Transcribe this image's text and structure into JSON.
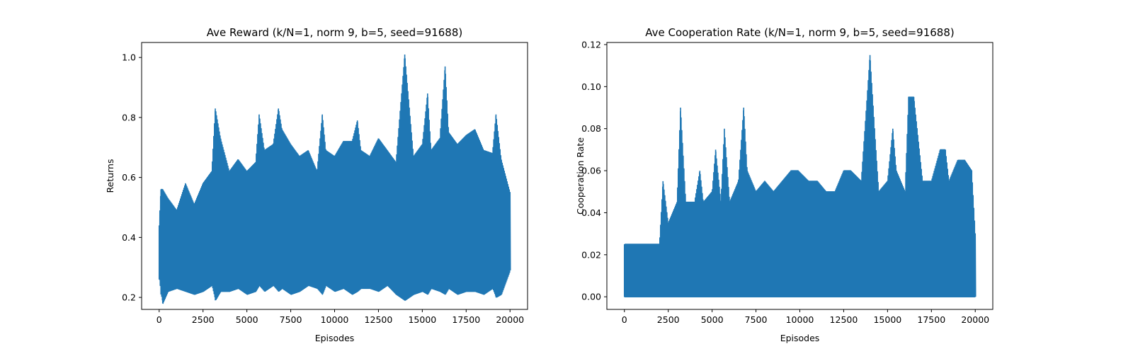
{
  "chart_data": [
    {
      "type": "line",
      "title": "Ave Reward (k/N=1, norm 9, b=5, seed=91688)",
      "xlabel": "Episodes",
      "ylabel": "Returns",
      "xlim": [
        -1000,
        21000
      ],
      "ylim": [
        0.16,
        1.05
      ],
      "xticks": [
        0,
        2500,
        5000,
        7500,
        10000,
        12500,
        15000,
        17500,
        20000
      ],
      "yticks": [
        0.2,
        0.4,
        0.6,
        0.8,
        1.0
      ],
      "xtick_labels": [
        "0",
        "2500",
        "5000",
        "7500",
        "10000",
        "12500",
        "15000",
        "17500",
        "20000"
      ],
      "ytick_labels": [
        "0.2",
        "0.4",
        "0.6",
        "0.8",
        "1.0"
      ],
      "grid": false,
      "color": "#1f77b4",
      "series": [
        {
          "x": [
            0,
            100,
            200,
            500,
            1000,
            1500,
            2000,
            2500,
            3000,
            3200,
            3500,
            4000,
            4500,
            5000,
            5500,
            5700,
            6000,
            6500,
            6800,
            7000,
            7500,
            8000,
            8500,
            9000,
            9300,
            9500,
            10000,
            10500,
            11000,
            11300,
            11500,
            12000,
            12500,
            13000,
            13500,
            14000,
            14500,
            15000,
            15300,
            15500,
            16000,
            16300,
            16500,
            17000,
            17500,
            18000,
            18500,
            19000,
            19200,
            19500,
            20000
          ],
          "y_high": [
            0.44,
            0.56,
            0.56,
            0.53,
            0.49,
            0.58,
            0.51,
            0.58,
            0.62,
            0.83,
            0.73,
            0.62,
            0.66,
            0.62,
            0.65,
            0.81,
            0.69,
            0.71,
            0.83,
            0.76,
            0.71,
            0.67,
            0.69,
            0.62,
            0.81,
            0.69,
            0.67,
            0.72,
            0.72,
            0.79,
            0.69,
            0.67,
            0.73,
            0.69,
            0.65,
            1.01,
            0.67,
            0.71,
            0.88,
            0.69,
            0.73,
            0.97,
            0.75,
            0.71,
            0.74,
            0.76,
            0.69,
            0.68,
            0.81,
            0.66,
            0.55
          ],
          "y_low": [
            0.26,
            0.21,
            0.18,
            0.22,
            0.23,
            0.22,
            0.21,
            0.22,
            0.24,
            0.19,
            0.22,
            0.22,
            0.23,
            0.21,
            0.22,
            0.24,
            0.22,
            0.24,
            0.22,
            0.23,
            0.21,
            0.22,
            0.24,
            0.23,
            0.21,
            0.24,
            0.22,
            0.23,
            0.21,
            0.22,
            0.23,
            0.23,
            0.22,
            0.24,
            0.21,
            0.19,
            0.21,
            0.22,
            0.21,
            0.23,
            0.22,
            0.21,
            0.23,
            0.21,
            0.22,
            0.22,
            0.21,
            0.23,
            0.2,
            0.21,
            0.29
          ]
        }
      ]
    },
    {
      "type": "line",
      "title": "Ave Cooperation Rate (k/N=1, norm 9, b=5, seed=91688)",
      "xlabel": "Episodes",
      "ylabel": "Cooperation Rate",
      "xlim": [
        -1000,
        21000
      ],
      "ylim": [
        -0.006,
        0.121
      ],
      "xticks": [
        0,
        2500,
        5000,
        7500,
        10000,
        12500,
        15000,
        17500,
        20000
      ],
      "yticks": [
        0.0,
        0.02,
        0.04,
        0.06,
        0.08,
        0.1,
        0.12
      ],
      "xtick_labels": [
        "0",
        "2500",
        "5000",
        "7500",
        "10000",
        "12500",
        "15000",
        "17500",
        "20000"
      ],
      "ytick_labels": [
        "0.00",
        "0.02",
        "0.04",
        "0.06",
        "0.08",
        "0.10",
        "0.12"
      ],
      "grid": false,
      "color": "#1f77b4",
      "series": [
        {
          "x": [
            0,
            500,
            1000,
            1500,
            2000,
            2200,
            2500,
            3000,
            3200,
            3500,
            4000,
            4300,
            4500,
            5000,
            5200,
            5500,
            5700,
            6000,
            6500,
            6800,
            7000,
            7500,
            8000,
            8500,
            9000,
            9500,
            9900,
            10500,
            11000,
            11500,
            12000,
            12500,
            12900,
            13500,
            14000,
            14300,
            14500,
            15000,
            15300,
            15500,
            16000,
            16200,
            16500,
            17000,
            17500,
            18000,
            18300,
            18500,
            19000,
            19400,
            19800,
            20000
          ],
          "y_high": [
            0.025,
            0.025,
            0.025,
            0.025,
            0.025,
            0.055,
            0.035,
            0.045,
            0.09,
            0.045,
            0.045,
            0.06,
            0.045,
            0.05,
            0.07,
            0.045,
            0.08,
            0.045,
            0.055,
            0.09,
            0.06,
            0.05,
            0.055,
            0.05,
            0.055,
            0.06,
            0.06,
            0.055,
            0.055,
            0.05,
            0.05,
            0.06,
            0.06,
            0.055,
            0.115,
            0.075,
            0.05,
            0.055,
            0.08,
            0.06,
            0.05,
            0.095,
            0.095,
            0.055,
            0.055,
            0.07,
            0.07,
            0.055,
            0.065,
            0.065,
            0.06,
            0.03
          ],
          "y_low": [
            0,
            0,
            0,
            0,
            0,
            0,
            0,
            0,
            0,
            0,
            0,
            0,
            0,
            0,
            0,
            0,
            0,
            0,
            0,
            0,
            0,
            0,
            0,
            0,
            0,
            0,
            0,
            0,
            0,
            0,
            0,
            0,
            0,
            0,
            0,
            0,
            0,
            0,
            0,
            0,
            0,
            0,
            0,
            0,
            0,
            0,
            0,
            0,
            0,
            0,
            0,
            0
          ]
        }
      ]
    }
  ]
}
